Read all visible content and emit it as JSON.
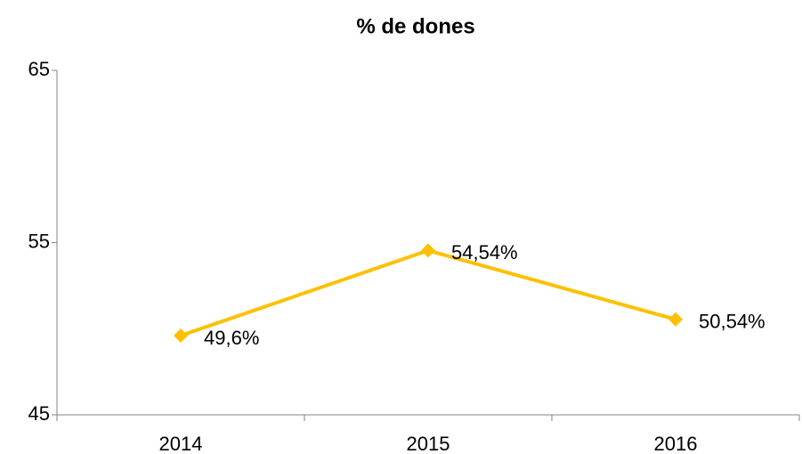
{
  "chart_data": {
    "type": "line",
    "title": "% de dones",
    "categories": [
      "2014",
      "2015",
      "2016"
    ],
    "series": [
      {
        "name": "% de dones",
        "color": "#FFC000",
        "values": [
          49.6,
          54.54,
          50.54
        ],
        "value_labels": [
          "49,6%",
          "54,54%",
          "50,54%"
        ]
      }
    ],
    "ylim": [
      45,
      65
    ],
    "yticks": [
      45,
      55,
      65
    ],
    "grid": false
  }
}
